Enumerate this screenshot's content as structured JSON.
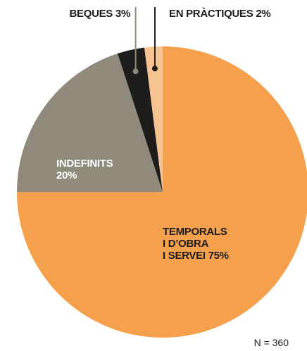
{
  "chart_data": {
    "type": "pie",
    "categories": [
      "TEMPORALS\nI D’OBRA\nI SERVEI",
      "INDEFINITS",
      "BEQUES",
      "EN PRÀCTIQUES"
    ],
    "values": [
      75,
      20,
      3,
      2
    ],
    "value_labels": [
      "75%",
      "20%",
      "3%",
      "2%"
    ],
    "colors": [
      "#f5a04c",
      "#8f8a7c",
      "#1f1d1b",
      "#f8c393"
    ],
    "start_angle": 0,
    "direction": "clockwise",
    "note": "N = 360"
  }
}
